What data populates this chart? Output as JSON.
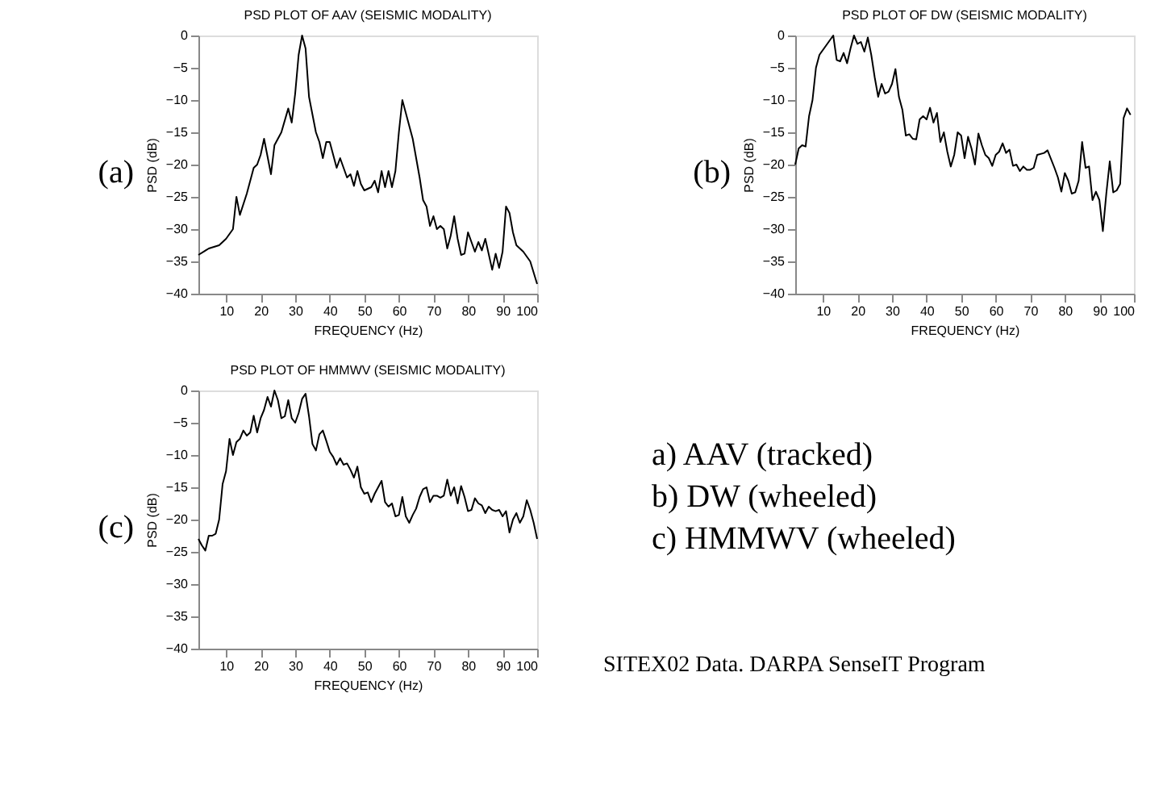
{
  "chart_data": [
    {
      "type": "line",
      "title": "PSD PLOT OF AAV (SEISMIC MODALITY)",
      "xlabel": "FREQUENCY (Hz)",
      "ylabel": "PSD (dB)",
      "annotations": [
        "(a)"
      ],
      "xlim": [
        2,
        100
      ],
      "xticks": [
        10,
        20,
        30,
        40,
        50,
        60,
        70,
        80,
        90,
        100
      ],
      "ylim": [
        -40,
        0
      ],
      "yticks": [
        -40,
        -35,
        -30,
        -25,
        -20,
        -15,
        -10,
        -5,
        0
      ],
      "color": "#000000",
      "x": [
        2,
        5,
        8,
        10,
        12,
        13,
        14,
        16,
        18,
        19,
        20,
        21,
        23,
        24,
        26,
        28,
        29,
        30,
        31,
        32,
        33,
        34,
        36,
        37,
        38,
        39,
        40,
        42,
        43,
        45,
        46,
        47,
        48,
        49,
        50,
        52,
        53,
        54,
        55,
        56,
        57,
        58,
        59,
        60,
        61,
        62,
        64,
        66,
        67,
        68,
        69,
        70,
        71,
        72,
        73,
        74,
        75,
        76,
        77,
        78,
        79,
        80,
        82,
        83,
        84,
        85,
        87,
        88,
        89,
        90,
        91,
        92,
        93,
        94,
        95,
        96,
        98,
        100
      ],
      "values": [
        -34,
        -33,
        -32.5,
        -31.5,
        -30,
        -25,
        -27.8,
        -24.5,
        -20.5,
        -20,
        -18.5,
        -16,
        -21.5,
        -17,
        -15,
        -11.3,
        -13.5,
        -9,
        -3,
        0,
        -2,
        -9.5,
        -15,
        -16.5,
        -19,
        -16.5,
        -16.5,
        -20.5,
        -19,
        -22,
        -21.5,
        -23.3,
        -21,
        -23,
        -24,
        -23.5,
        -22.5,
        -24.3,
        -21,
        -23.5,
        -21,
        -23.5,
        -21,
        -15,
        -10,
        -12,
        -16,
        -22,
        -25.5,
        -26.5,
        -29.5,
        -28,
        -30,
        -29.5,
        -30,
        -33,
        -31,
        -28,
        -31.5,
        -34,
        -33.8,
        -30.5,
        -33.5,
        -32,
        -33.3,
        -31.5,
        -36.3,
        -33.8,
        -36,
        -33.5,
        -26.5,
        -27.5,
        -30.5,
        -32.5,
        -33,
        -33.5,
        -35,
        -38.5
      ]
    },
    {
      "type": "line",
      "title": "PSD PLOT OF DW (SEISMIC MODALITY)",
      "xlabel": "FREQUENCY (Hz)",
      "ylabel": "PSD (dB)",
      "annotations": [
        "(b)"
      ],
      "xlim": [
        2,
        100
      ],
      "xticks": [
        10,
        20,
        30,
        40,
        50,
        60,
        70,
        80,
        90,
        100
      ],
      "ylim": [
        -40,
        0
      ],
      "yticks": [
        -40,
        -35,
        -30,
        -25,
        -20,
        -15,
        -10,
        -5,
        0
      ],
      "color": "#000000",
      "x": [
        2,
        3,
        4,
        5,
        6,
        7,
        8,
        9,
        11,
        13,
        14,
        15,
        16,
        17,
        18,
        19,
        20,
        21,
        22,
        23,
        24,
        25,
        26,
        27,
        28,
        29,
        30,
        31,
        32,
        33,
        34,
        35,
        36,
        37,
        38,
        39,
        40,
        41,
        42,
        43,
        44,
        45,
        46,
        47,
        48,
        49,
        50,
        51,
        52,
        53,
        54,
        55,
        56,
        57,
        58,
        59,
        60,
        61,
        62,
        63,
        64,
        65,
        66,
        67,
        68,
        69,
        70,
        71,
        72,
        74,
        75,
        77,
        78,
        79,
        80,
        81,
        82,
        83,
        84,
        85,
        86,
        87,
        88,
        89,
        90,
        91,
        92,
        93,
        94,
        95,
        96,
        97,
        98,
        99
      ],
      "values": [
        -20,
        -17.5,
        -17,
        -17.2,
        -12.5,
        -10,
        -5,
        -3,
        -1.5,
        0,
        -3.8,
        -4,
        -2.7,
        -4.3,
        -2,
        0,
        -1.3,
        -1,
        -2.5,
        -0.3,
        -3,
        -6.5,
        -9.5,
        -7.5,
        -9,
        -8.7,
        -7.5,
        -5.2,
        -9.5,
        -11.5,
        -15.5,
        -15.3,
        -16,
        -16.1,
        -13,
        -12.5,
        -13,
        -11.2,
        -13.5,
        -12,
        -16.5,
        -15,
        -18,
        -20.3,
        -18.5,
        -15,
        -15.5,
        -19,
        -15.7,
        -17.5,
        -20,
        -15.2,
        -17,
        -18.5,
        -19,
        -20.2,
        -18.5,
        -18,
        -16.7,
        -18.2,
        -17.7,
        -20.2,
        -20,
        -21,
        -20.3,
        -20.8,
        -20.8,
        -20.5,
        -18.5,
        -18.2,
        -17.8,
        -20.5,
        -22,
        -24.2,
        -21.3,
        -22.5,
        -24.5,
        -24.3,
        -22.5,
        -16.5,
        -20.5,
        -20.3,
        -25.5,
        -24.2,
        -25.5,
        -30.3,
        -24.5,
        -19.5,
        -24.3,
        -24,
        -23,
        -12.8,
        -11.3,
        -12.3
      ]
    },
    {
      "type": "line",
      "title": "PSD PLOT OF HMMWV (SEISMIC MODALITY)",
      "xlabel": "FREQUENCY (Hz)",
      "ylabel": "PSD (dB)",
      "annotations": [
        "(c)"
      ],
      "xlim": [
        2,
        100
      ],
      "xticks": [
        10,
        20,
        30,
        40,
        50,
        60,
        70,
        80,
        90,
        100
      ],
      "ylim": [
        -40,
        0
      ],
      "yticks": [
        -40,
        -35,
        -30,
        -25,
        -20,
        -15,
        -10,
        -5,
        0
      ],
      "color": "#000000",
      "x": [
        2,
        3,
        4,
        5,
        6,
        7,
        8,
        9,
        10,
        11,
        12,
        13,
        14,
        15,
        16,
        17,
        18,
        19,
        20,
        21,
        22,
        23,
        24,
        25,
        26,
        27,
        28,
        29,
        30,
        31,
        32,
        33,
        34,
        35,
        36,
        37,
        38,
        39,
        40,
        41,
        42,
        43,
        44,
        45,
        46,
        47,
        48,
        49,
        50,
        51,
        52,
        53,
        54,
        55,
        56,
        57,
        58,
        59,
        60,
        61,
        62,
        63,
        64,
        65,
        66,
        67,
        68,
        69,
        70,
        71,
        72,
        73,
        74,
        75,
        76,
        77,
        78,
        79,
        80,
        81,
        82,
        83,
        84,
        85,
        86,
        87,
        88,
        89,
        90,
        91,
        92,
        93,
        94,
        95,
        96,
        97,
        98,
        99,
        100
      ],
      "values": [
        -23,
        -24,
        -24.8,
        -22.5,
        -22.5,
        -22.2,
        -20,
        -14.5,
        -12.5,
        -7.5,
        -10,
        -8,
        -7.5,
        -6.2,
        -7,
        -6.5,
        -3.9,
        -6.5,
        -4.3,
        -3,
        -1,
        -2.5,
        0,
        -1.5,
        -4.3,
        -4,
        -1.5,
        -4.3,
        -5,
        -3.5,
        -1.3,
        -0.5,
        -4,
        -8.3,
        -9.3,
        -6.8,
        -6.2,
        -7.8,
        -9.5,
        -10.3,
        -11.5,
        -10.5,
        -11.5,
        -11.3,
        -12.3,
        -13.5,
        -11.8,
        -15,
        -16,
        -15.8,
        -17.3,
        -16,
        -15,
        -14,
        -17.3,
        -18,
        -17.5,
        -19.5,
        -19.3,
        -16.5,
        -19.5,
        -20.5,
        -19.3,
        -18.3,
        -16.5,
        -15.3,
        -15,
        -17.3,
        -16.3,
        -16.3,
        -16.6,
        -16.3,
        -13.8,
        -16.3,
        -15,
        -17.5,
        -14.8,
        -16.5,
        -18.7,
        -18.5,
        -16.7,
        -17.5,
        -17.8,
        -19,
        -18,
        -18.5,
        -18.7,
        -18.5,
        -19.5,
        -18.7,
        -22,
        -20,
        -19,
        -20.5,
        -19.5,
        -17,
        -18.5,
        -20.5,
        -23
      ]
    },
    {
      "type": "other",
      "annotations": [
        "a)  AAV (tracked)",
        "b)  DW (wheeled)",
        "c)  HMMWV (wheeled)",
        "SITEX02 Data. DARPA SenseIT Program"
      ]
    }
  ]
}
